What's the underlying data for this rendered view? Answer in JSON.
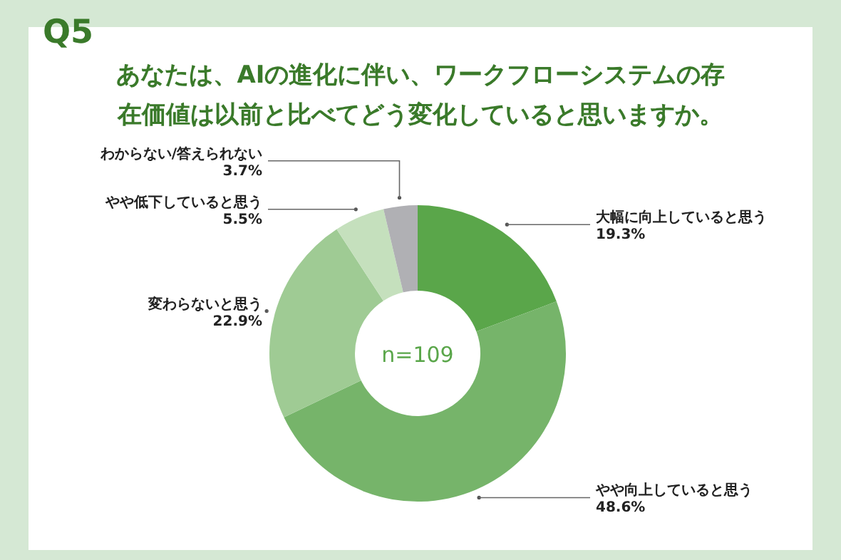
{
  "chart_data": {
    "type": "donut",
    "title": "Q5",
    "subtitle": "あなたは、AIの進化に伴い、ワークフローシステムの存在価値は以前と比べてどう変化していると思いますか。",
    "categories": [
      "大幅に向上していると思う",
      "やや向上していると思う",
      "変わらないと思う",
      "やや低下していると思う",
      "わからない/答えられない"
    ],
    "values": [
      19.3,
      48.6,
      22.9,
      5.5,
      3.7
    ],
    "value_labels": [
      "19.3%",
      "48.6%",
      "22.9%",
      "5.5%",
      "3.7%"
    ],
    "colors": [
      "#5aa64a",
      "#76b46a",
      "#9fcb94",
      "#c5e0bd",
      "#b0b0b4"
    ],
    "annotations": [
      "n=109"
    ]
  }
}
